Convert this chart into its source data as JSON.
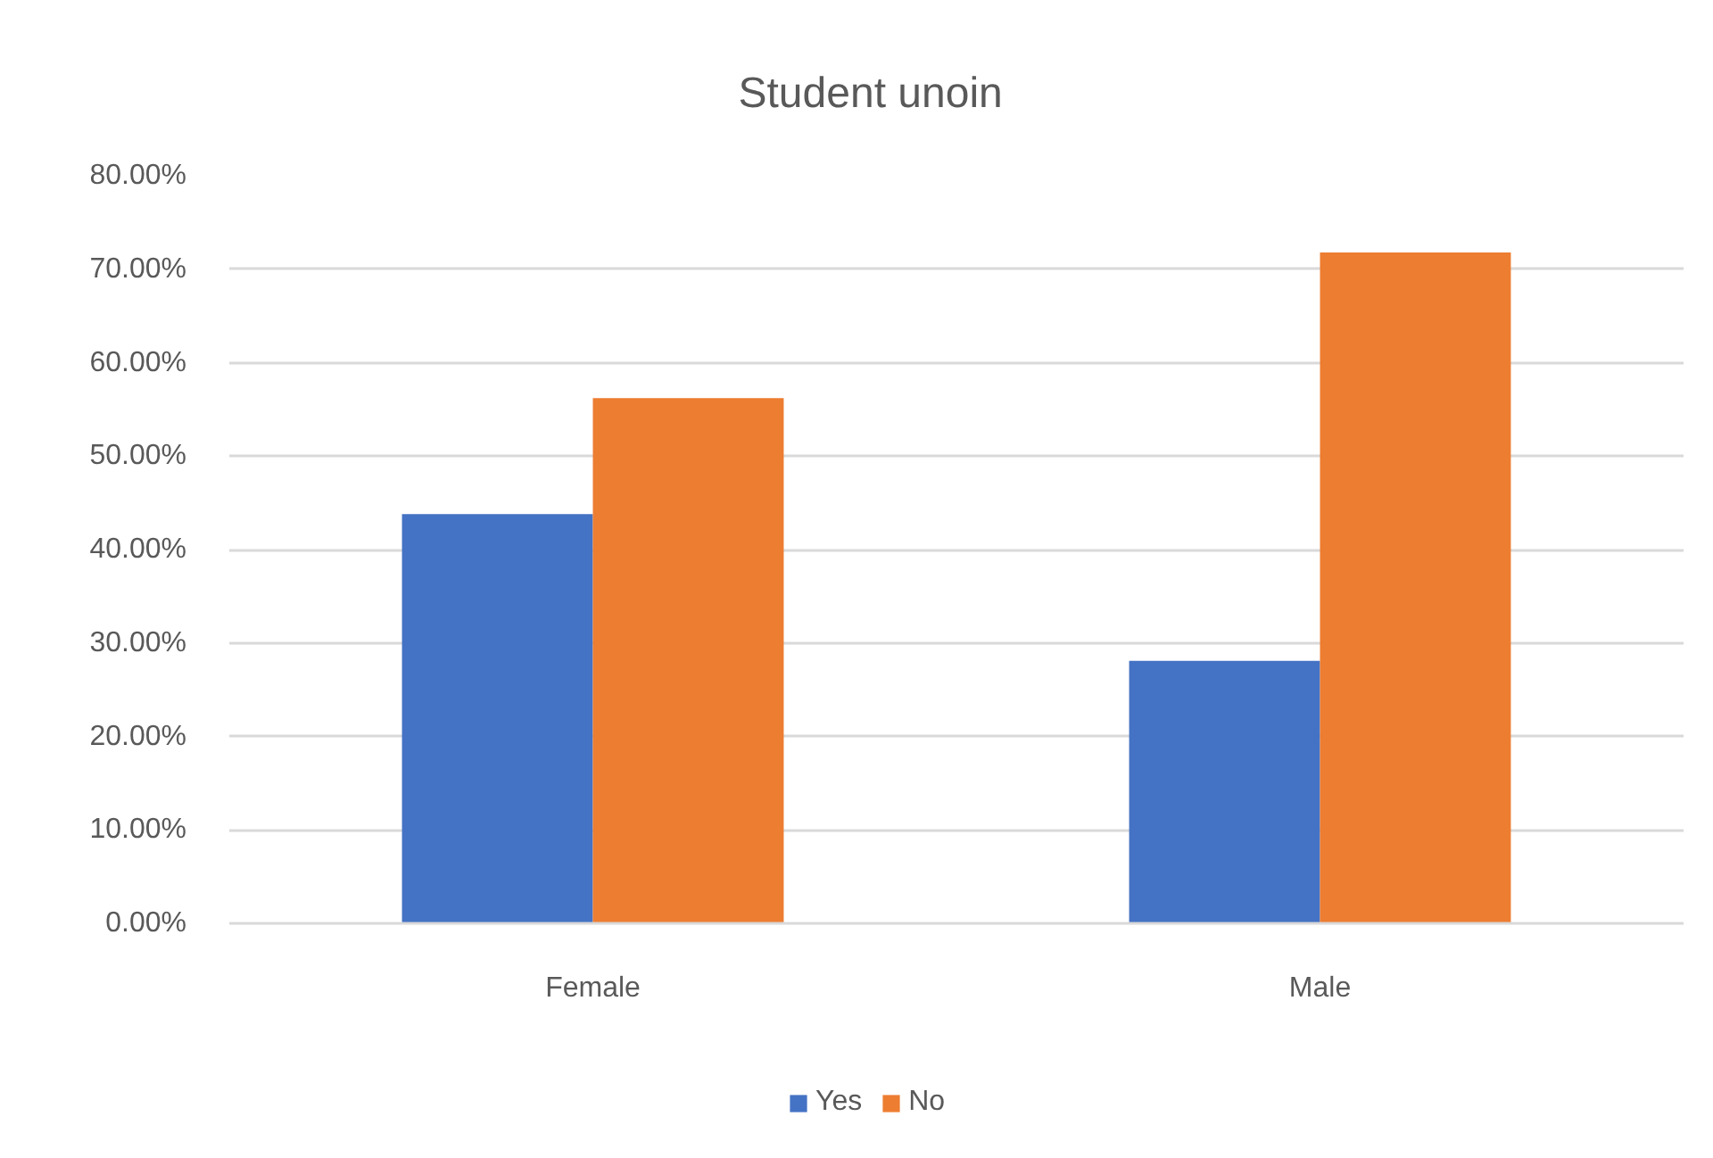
{
  "chart_data": {
    "type": "bar",
    "title": "Student unoin",
    "categories": [
      "Female",
      "Male"
    ],
    "series": [
      {
        "name": "Yes",
        "color": "#4472c4",
        "values": [
          43.8,
          28.1
        ]
      },
      {
        "name": "No",
        "color": "#ed7d31",
        "values": [
          56.2,
          71.8
        ]
      }
    ],
    "ylim": [
      0,
      80
    ],
    "yticks": [
      {
        "value": 0,
        "label": "0.00%"
      },
      {
        "value": 10,
        "label": "10.00%"
      },
      {
        "value": 20,
        "label": "20.00%"
      },
      {
        "value": 30,
        "label": "30.00%"
      },
      {
        "value": 40,
        "label": "40.00%"
      },
      {
        "value": 50,
        "label": "50.00%"
      },
      {
        "value": 60,
        "label": "60.00%"
      },
      {
        "value": 70,
        "label": "70.00%"
      },
      {
        "value": 80,
        "label": "80.00%"
      }
    ],
    "grid": "y",
    "legend": "bottom"
  }
}
